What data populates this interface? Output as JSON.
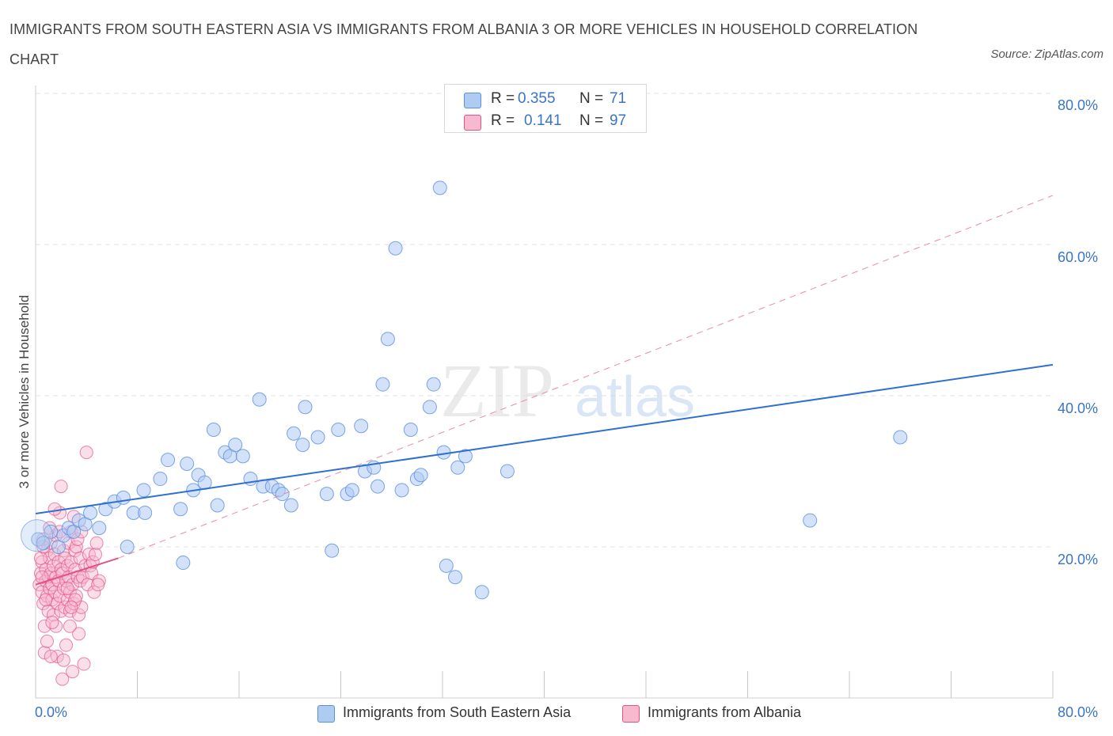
{
  "title": "IMMIGRANTS FROM SOUTH EASTERN ASIA VS IMMIGRANTS FROM ALBANIA 3 OR MORE VEHICLES IN HOUSEHOLD CORRELATION CHART",
  "source": "Source: ZipAtlas.com",
  "watermark": {
    "zip": "ZIP",
    "atlas": "atlas"
  },
  "colors": {
    "blue": "#5b8fe0",
    "blue_fill": "#aecbf2",
    "pink": "#e2528a",
    "pink_fill": "#f7b9cd",
    "axis_text": "#3a74c7"
  },
  "legend": {
    "rows": [
      {
        "r_label": "R =",
        "r_value": "0.355",
        "n_label": "N =",
        "n_value": "71"
      },
      {
        "r_label": "R =",
        "r_value": "0.141",
        "n_label": "N =",
        "n_value": "97"
      }
    ]
  },
  "bottom_legend": [
    "Immigrants from South Eastern Asia",
    "Immigrants from Albania"
  ],
  "chart_data": {
    "type": "scatter",
    "title": "IMMIGRANTS FROM SOUTH EASTERN ASIA VS IMMIGRANTS FROM ALBANIA 3 OR MORE VEHICLES IN HOUSEHOLD CORRELATION CHART",
    "xlabel": "",
    "ylabel": "3 or more Vehicles in Household",
    "xlim": [
      0,
      80
    ],
    "ylim": [
      0,
      80
    ],
    "x_tick_labels": [
      "0.0%",
      "80.0%"
    ],
    "y_tick_labels": [
      "20.0%",
      "40.0%",
      "60.0%",
      "80.0%"
    ],
    "y_ticks": [
      20,
      40,
      60,
      80
    ],
    "x_minor_ticks": [
      0,
      8,
      16,
      24,
      32,
      40,
      48,
      56,
      64,
      72,
      80
    ],
    "series": [
      {
        "name": "Immigrants from South Eastern Asia",
        "color": "#5b8fe0",
        "R": 0.355,
        "N": 71,
        "trend": {
          "x0": 0,
          "y0": 24.4,
          "x1": 80,
          "y1": 44.1,
          "style": "solid"
        },
        "points": [
          [
            0.2,
            21.0
          ],
          [
            0.6,
            20.5
          ],
          [
            1.2,
            22.0
          ],
          [
            1.8,
            20.0
          ],
          [
            2.2,
            21.5
          ],
          [
            2.6,
            22.5
          ],
          [
            3.0,
            22.0
          ],
          [
            3.4,
            23.5
          ],
          [
            3.9,
            23.0
          ],
          [
            4.3,
            24.5
          ],
          [
            5.0,
            22.5
          ],
          [
            5.5,
            25.0
          ],
          [
            6.2,
            26.0
          ],
          [
            6.9,
            26.5
          ],
          [
            7.2,
            20.0
          ],
          [
            7.7,
            24.5
          ],
          [
            8.6,
            24.5
          ],
          [
            8.5,
            27.5
          ],
          [
            9.8,
            29.0
          ],
          [
            10.4,
            31.5
          ],
          [
            11.4,
            25.0
          ],
          [
            11.6,
            17.9
          ],
          [
            11.9,
            31.0
          ],
          [
            12.4,
            27.5
          ],
          [
            12.8,
            29.5
          ],
          [
            13.3,
            28.5
          ],
          [
            14.0,
            35.5
          ],
          [
            14.3,
            25.5
          ],
          [
            14.9,
            32.5
          ],
          [
            15.3,
            32.0
          ],
          [
            15.7,
            33.5
          ],
          [
            16.3,
            32.0
          ],
          [
            16.9,
            29.0
          ],
          [
            17.6,
            39.5
          ],
          [
            17.9,
            28.0
          ],
          [
            18.6,
            28.0
          ],
          [
            19.1,
            27.5
          ],
          [
            19.4,
            27.0
          ],
          [
            20.1,
            25.5
          ],
          [
            20.3,
            35.0
          ],
          [
            21.0,
            33.5
          ],
          [
            21.2,
            38.5
          ],
          [
            22.2,
            34.5
          ],
          [
            22.9,
            27.0
          ],
          [
            23.3,
            19.5
          ],
          [
            23.8,
            35.5
          ],
          [
            24.5,
            27.0
          ],
          [
            24.9,
            27.5
          ],
          [
            25.6,
            36.0
          ],
          [
            25.9,
            30.0
          ],
          [
            26.6,
            30.5
          ],
          [
            26.9,
            28.0
          ],
          [
            27.3,
            41.5
          ],
          [
            27.7,
            47.5
          ],
          [
            28.3,
            59.5
          ],
          [
            28.8,
            27.5
          ],
          [
            29.5,
            35.5
          ],
          [
            30.0,
            29.0
          ],
          [
            30.3,
            29.5
          ],
          [
            31.0,
            38.5
          ],
          [
            31.3,
            41.5
          ],
          [
            31.8,
            67.5
          ],
          [
            32.1,
            32.5
          ],
          [
            32.3,
            17.5
          ],
          [
            33.0,
            16.0
          ],
          [
            33.2,
            30.5
          ],
          [
            33.8,
            32.0
          ],
          [
            35.1,
            14.0
          ],
          [
            37.1,
            30.0
          ],
          [
            60.9,
            23.5
          ],
          [
            68.0,
            34.5
          ]
        ]
      },
      {
        "name": "Immigrants from Albania",
        "color": "#e2528a",
        "R": 0.141,
        "N": 97,
        "trend": {
          "x0": 0,
          "y0": 15.0,
          "x1": 6.5,
          "y1": 18.5,
          "style": "solid"
        },
        "trend_ext": {
          "x0": 6.5,
          "y0": 18.5,
          "x1": 80,
          "y1": 66.5,
          "style": "dashed"
        },
        "points": [
          [
            0.3,
            15.0
          ],
          [
            0.4,
            16.5
          ],
          [
            0.5,
            14.0
          ],
          [
            0.5,
            18.0
          ],
          [
            0.6,
            21.0
          ],
          [
            0.6,
            12.5
          ],
          [
            0.7,
            9.5
          ],
          [
            0.7,
            6.0
          ],
          [
            0.8,
            15.5
          ],
          [
            0.8,
            17.0
          ],
          [
            0.9,
            13.5
          ],
          [
            0.9,
            19.5
          ],
          [
            1.0,
            16.0
          ],
          [
            1.0,
            11.5
          ],
          [
            1.1,
            14.5
          ],
          [
            1.1,
            18.5
          ],
          [
            1.2,
            20.5
          ],
          [
            1.2,
            16.5
          ],
          [
            1.3,
            13.0
          ],
          [
            1.3,
            15.0
          ],
          [
            1.4,
            17.5
          ],
          [
            1.4,
            11.0
          ],
          [
            1.5,
            19.0
          ],
          [
            1.5,
            14.0
          ],
          [
            1.6,
            21.5
          ],
          [
            1.6,
            16.0
          ],
          [
            1.7,
            12.5
          ],
          [
            1.7,
            5.5
          ],
          [
            1.8,
            18.0
          ],
          [
            1.8,
            15.5
          ],
          [
            1.9,
            13.5
          ],
          [
            1.9,
            24.5
          ],
          [
            2.0,
            17.0
          ],
          [
            2.0,
            11.5
          ],
          [
            2.1,
            16.5
          ],
          [
            2.1,
            2.5
          ],
          [
            2.2,
            14.5
          ],
          [
            2.2,
            19.5
          ],
          [
            2.3,
            12.0
          ],
          [
            2.3,
            18.5
          ],
          [
            2.4,
            15.5
          ],
          [
            2.4,
            7.0
          ],
          [
            2.5,
            17.5
          ],
          [
            2.5,
            13.0
          ],
          [
            2.6,
            20.5
          ],
          [
            2.6,
            16.0
          ],
          [
            2.7,
            11.5
          ],
          [
            2.7,
            14.0
          ],
          [
            2.8,
            22.0
          ],
          [
            2.8,
            18.0
          ],
          [
            2.9,
            3.5
          ],
          [
            2.9,
            15.0
          ],
          [
            3.0,
            24.0
          ],
          [
            3.0,
            12.5
          ],
          [
            3.1,
            17.0
          ],
          [
            3.1,
            19.5
          ],
          [
            3.2,
            20.0
          ],
          [
            3.2,
            13.5
          ],
          [
            3.3,
            16.0
          ],
          [
            3.3,
            21.0
          ],
          [
            3.4,
            8.5
          ],
          [
            3.4,
            11.0
          ],
          [
            3.5,
            18.5
          ],
          [
            3.5,
            15.5
          ],
          [
            3.6,
            22.0
          ],
          [
            3.7,
            16.0
          ],
          [
            3.8,
            4.5
          ],
          [
            3.9,
            17.5
          ],
          [
            4.0,
            32.5
          ],
          [
            4.1,
            15.0
          ],
          [
            4.2,
            19.0
          ],
          [
            4.3,
            17.5
          ],
          [
            4.4,
            16.5
          ],
          [
            4.5,
            18.0
          ],
          [
            4.6,
            14.0
          ],
          [
            4.7,
            19.0
          ],
          [
            4.8,
            20.5
          ],
          [
            5.0,
            15.5
          ],
          [
            2.0,
            28.0
          ],
          [
            1.5,
            25.0
          ],
          [
            0.9,
            7.5
          ],
          [
            1.2,
            5.5
          ],
          [
            2.7,
            9.5
          ],
          [
            0.4,
            18.5
          ],
          [
            0.6,
            20.0
          ],
          [
            1.1,
            22.5
          ],
          [
            1.6,
            9.5
          ],
          [
            2.2,
            5.0
          ],
          [
            3.6,
            12.0
          ],
          [
            0.8,
            13.0
          ],
          [
            1.3,
            10.0
          ],
          [
            2.5,
            14.5
          ],
          [
            3.1,
            13.0
          ],
          [
            4.9,
            15.0
          ],
          [
            0.5,
            16.0
          ],
          [
            1.9,
            22.0
          ],
          [
            2.8,
            12.0
          ]
        ]
      }
    ]
  }
}
